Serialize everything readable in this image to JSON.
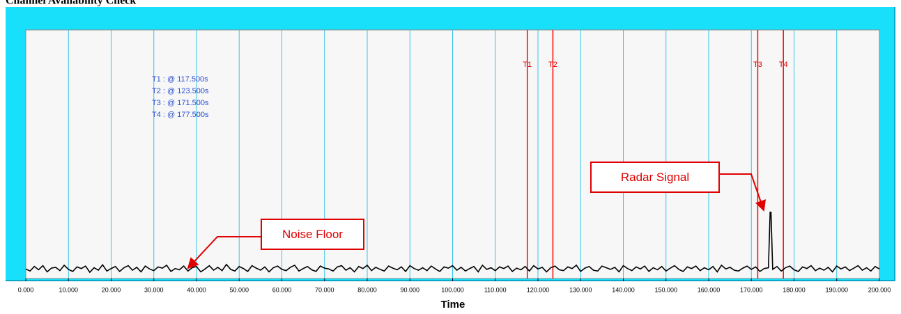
{
  "chart_data": {
    "type": "line",
    "title": "Channel Availability Check",
    "xlabel": "Time",
    "xlim": [
      0,
      200
    ],
    "ylim": [
      0,
      60
    ],
    "grid": true,
    "grid_color": "#33c6e6",
    "xticks": [
      {
        "value": 0,
        "label": "0.000"
      },
      {
        "value": 10,
        "label": "10.000"
      },
      {
        "value": 20,
        "label": "20.000"
      },
      {
        "value": 30,
        "label": "30.000"
      },
      {
        "value": 40,
        "label": "40.000"
      },
      {
        "value": 50,
        "label": "50.000"
      },
      {
        "value": 60,
        "label": "60.000"
      },
      {
        "value": 70,
        "label": "70.000"
      },
      {
        "value": 80,
        "label": "80.000"
      },
      {
        "value": 90,
        "label": "90.000"
      },
      {
        "value": 100,
        "label": "100.000"
      },
      {
        "value": 110,
        "label": "110.000"
      },
      {
        "value": 120,
        "label": "120.000"
      },
      {
        "value": 130,
        "label": "130.000"
      },
      {
        "value": 140,
        "label": "140.000"
      },
      {
        "value": 150,
        "label": "150.000"
      },
      {
        "value": 160,
        "label": "160.000"
      },
      {
        "value": 170,
        "label": "170.000"
      },
      {
        "value": 180,
        "label": "180.000"
      },
      {
        "value": 190,
        "label": "190.000"
      },
      {
        "value": 200,
        "label": "200.000"
      }
    ],
    "cursors": [
      {
        "name": "T1",
        "value": 117.5,
        "label": "T1 : @ 117.500s"
      },
      {
        "name": "T2",
        "value": 123.5,
        "label": "T2 : @ 123.500s"
      },
      {
        "name": "T3",
        "value": 171.5,
        "label": "T3 : @ 171.500s"
      },
      {
        "name": "T4",
        "value": 177.5,
        "label": "T4 : @ 177.500s"
      }
    ],
    "cursor_color": "#ff0000",
    "annotations": [
      {
        "text": "Noise Floor"
      },
      {
        "text": "Radar Signal"
      }
    ],
    "x": [
      0,
      1,
      2,
      3,
      4,
      5,
      6,
      7,
      8,
      9,
      10,
      11,
      12,
      13,
      14,
      15,
      16,
      17,
      18,
      19,
      20,
      21,
      22,
      23,
      24,
      25,
      26,
      27,
      28,
      29,
      30,
      31,
      32,
      33,
      34,
      35,
      36,
      37,
      38,
      39,
      40,
      41,
      42,
      43,
      44,
      45,
      46,
      47,
      48,
      49,
      50,
      51,
      52,
      53,
      54,
      55,
      56,
      57,
      58,
      59,
      60,
      61,
      62,
      63,
      64,
      65,
      66,
      67,
      68,
      69,
      70,
      71,
      72,
      73,
      74,
      75,
      76,
      77,
      78,
      79,
      80,
      81,
      82,
      83,
      84,
      85,
      86,
      87,
      88,
      89,
      90,
      91,
      92,
      93,
      94,
      95,
      96,
      97,
      98,
      99,
      100,
      101,
      102,
      103,
      104,
      105,
      106,
      107,
      108,
      109,
      110,
      111,
      112,
      113,
      114,
      115,
      116,
      117,
      118,
      119,
      120,
      121,
      122,
      123,
      124,
      125,
      126,
      127,
      128,
      129,
      130,
      131,
      132,
      133,
      134,
      135,
      136,
      137,
      138,
      139,
      140,
      141,
      142,
      143,
      144,
      145,
      146,
      147,
      148,
      149,
      150,
      151,
      152,
      153,
      154,
      155,
      156,
      157,
      158,
      159,
      160,
      161,
      162,
      163,
      164,
      165,
      166,
      167,
      168,
      169,
      170,
      171,
      172,
      173,
      174,
      174.4,
      174.6,
      175,
      176,
      177,
      178,
      179,
      180,
      181,
      182,
      183,
      184,
      185,
      186,
      187,
      188,
      189,
      190,
      191,
      192,
      193,
      194,
      195,
      196,
      197,
      198,
      199,
      200
    ],
    "series": [
      {
        "color": "#000000",
        "values": [
          2.3,
          1.8,
          2.9,
          2.1,
          3.1,
          1.6,
          2.5,
          2.7,
          1.9,
          3.2,
          2.2,
          1.7,
          2.8,
          2.4,
          3.0,
          1.5,
          2.6,
          2.0,
          3.3,
          1.8,
          2.4,
          2.9,
          1.7,
          2.6,
          3.1,
          2.0,
          2.7,
          1.6,
          3.0,
          2.3,
          1.9,
          2.8,
          2.5,
          3.2,
          1.7,
          2.4,
          2.1,
          3.0,
          1.8,
          2.6,
          2.9,
          1.6,
          2.3,
          3.1,
          2.0,
          2.7,
          1.9,
          3.4,
          2.2,
          1.8,
          2.9,
          2.4,
          1.7,
          3.1,
          2.5,
          2.0,
          2.8,
          1.6,
          2.6,
          3.0,
          2.2,
          1.9,
          2.7,
          3.2,
          1.8,
          2.4,
          2.9,
          2.1,
          1.7,
          3.0,
          2.5,
          2.3,
          1.8,
          2.8,
          3.1,
          2.0,
          2.6,
          1.6,
          2.9,
          2.4,
          3.2,
          1.9,
          2.7,
          2.2,
          1.8,
          3.0,
          2.5,
          2.1,
          2.8,
          1.7,
          3.1,
          2.4,
          2.0,
          2.6,
          1.9,
          3.0,
          2.3,
          1.7,
          2.8,
          2.5,
          3.1,
          2.0,
          2.7,
          1.8,
          2.4,
          2.9,
          1.6,
          3.2,
          2.2,
          2.6,
          1.9,
          2.8,
          2.4,
          3.0,
          1.7,
          2.5,
          2.1,
          2.9,
          1.8,
          3.1,
          2.3,
          2.7,
          1.6,
          2.6,
          3.0,
          2.1,
          1.9,
          2.8,
          2.4,
          3.2,
          1.7,
          2.5,
          2.9,
          2.0,
          1.8,
          3.0,
          2.6,
          2.2,
          2.7,
          1.6,
          3.1,
          2.4,
          1.9,
          2.8,
          2.3,
          3.0,
          1.7,
          2.6,
          2.1,
          2.9,
          1.8,
          2.5,
          3.1,
          2.2,
          1.7,
          2.8,
          2.4,
          3.0,
          1.9,
          2.6,
          2.1,
          2.9,
          1.6,
          3.2,
          2.3,
          2.7,
          2.0,
          1.8,
          2.5,
          3.0,
          2.2,
          2.8,
          1.7,
          2.4,
          2.6,
          16.0,
          16.0,
          2.2,
          2.9,
          1.8,
          2.6,
          3.0,
          2.1,
          1.7,
          2.8,
          2.4,
          3.1,
          1.9,
          2.5,
          2.0,
          2.7,
          1.6,
          3.0,
          2.3,
          2.8,
          1.9,
          2.5,
          3.1,
          2.0,
          2.6,
          1.8,
          2.9,
          2.3
        ]
      }
    ]
  }
}
